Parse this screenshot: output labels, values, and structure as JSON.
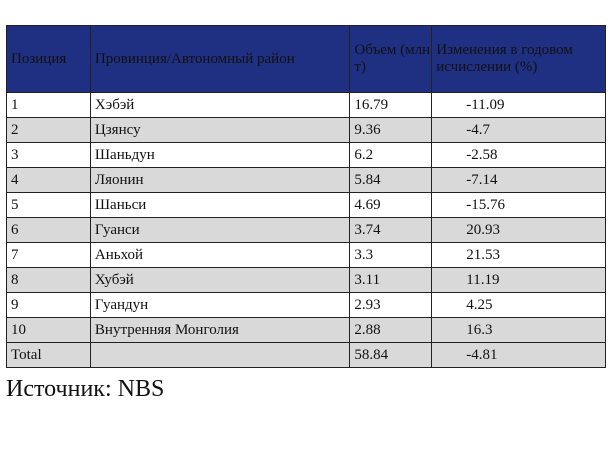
{
  "table": {
    "headers": [
      "Позиция",
      "Провинция/Автономный район",
      "Объем (млн т)",
      "Изменения в годовом исчислении (%)"
    ],
    "rows": [
      [
        "1",
        "Хэбэй",
        "16.79",
        "-11.09"
      ],
      [
        "2",
        "Цзянсу",
        "9.36",
        "-4.7"
      ],
      [
        "3",
        "Шаньдун",
        "6.2",
        "-2.58"
      ],
      [
        "4",
        "Ляонин",
        "5.84",
        "-7.14"
      ],
      [
        "5",
        "Шаньси",
        "4.69",
        "-15.76"
      ],
      [
        "6",
        "Гуанси",
        "3.74",
        "20.93"
      ],
      [
        "7",
        "Аньхой",
        "3.3",
        "21.53"
      ],
      [
        "8",
        "Хубэй",
        "3.11",
        "11.19"
      ],
      [
        "9",
        "Гуандун",
        "2.93",
        "4.25"
      ],
      [
        "10",
        "Внутренняя Монголия",
        "2.88",
        "16.3"
      ],
      [
        "Total",
        "",
        "58.84",
        "-4.81"
      ]
    ],
    "header_color": "#1f3083",
    "stripe_color": "#d9d9d9"
  },
  "source": "Источник: NBS"
}
